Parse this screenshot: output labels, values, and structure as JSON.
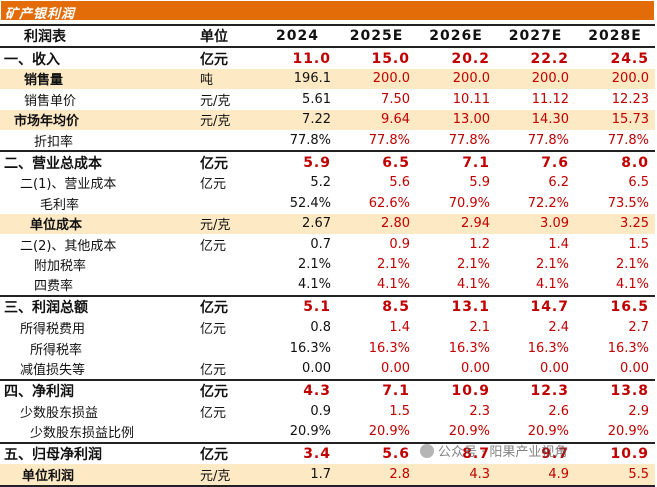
{
  "title": "矿产银利润",
  "header": {
    "label": "利润表",
    "unit": "单位",
    "years": [
      "2024",
      "2025E",
      "2026E",
      "2027E",
      "2028E"
    ]
  },
  "rows": [
    {
      "name": "一、收入",
      "unit": "亿元",
      "values": [
        "11.0",
        "15.0",
        "20.2",
        "22.2",
        "24.5"
      ],
      "style": "section"
    },
    {
      "name": "销售量",
      "unit": "吨",
      "values": [
        "196.1",
        "200.0",
        "200.0",
        "200.0",
        "200.0"
      ],
      "style": "hl-bold"
    },
    {
      "name": "销售单价",
      "unit": "元/克",
      "values": [
        "5.61",
        "7.50",
        "10.11",
        "11.12",
        "12.23"
      ],
      "style": "normal"
    },
    {
      "name": "市场年均价",
      "unit": "元/克",
      "values": [
        "7.22",
        "9.64",
        "13.00",
        "14.30",
        "15.73"
      ],
      "style": "hl-bold"
    },
    {
      "name": "折扣率",
      "unit": "",
      "values": [
        "77.8%",
        "77.8%",
        "77.8%",
        "77.8%",
        "77.8%"
      ],
      "style": "normal"
    },
    {
      "name": "二、营业总成本",
      "unit": "亿元",
      "values": [
        "5.9",
        "6.5",
        "7.1",
        "7.6",
        "8.0"
      ],
      "style": "section-rule"
    },
    {
      "name": "二(1)、营业成本",
      "unit": "亿元",
      "values": [
        "5.2",
        "5.6",
        "5.9",
        "6.2",
        "6.5"
      ],
      "style": "normal"
    },
    {
      "name": "毛利率",
      "unit": "",
      "values": [
        "52.4%",
        "62.6%",
        "70.9%",
        "72.2%",
        "73.5%"
      ],
      "style": "normal"
    },
    {
      "name": "单位成本",
      "unit": "元/克",
      "values": [
        "2.67",
        "2.80",
        "2.94",
        "3.09",
        "3.25"
      ],
      "style": "hl-bold"
    },
    {
      "name": "二(2)、其他成本",
      "unit": "亿元",
      "values": [
        "0.7",
        "0.9",
        "1.2",
        "1.4",
        "1.5"
      ],
      "style": "normal"
    },
    {
      "name": "附加税率",
      "unit": "",
      "values": [
        "2.1%",
        "2.1%",
        "2.1%",
        "2.1%",
        "2.1%"
      ],
      "style": "normal"
    },
    {
      "name": "四费率",
      "unit": "",
      "values": [
        "4.1%",
        "4.1%",
        "4.1%",
        "4.1%",
        "4.1%"
      ],
      "style": "normal"
    },
    {
      "name": "三、利润总额",
      "unit": "亿元",
      "values": [
        "5.1",
        "8.5",
        "13.1",
        "14.7",
        "16.5"
      ],
      "style": "section-rule"
    },
    {
      "name": "所得税费用",
      "unit": "亿元",
      "values": [
        "0.8",
        "1.4",
        "2.1",
        "2.4",
        "2.7"
      ],
      "style": "normal"
    },
    {
      "name": "所得税率",
      "unit": "",
      "values": [
        "16.3%",
        "16.3%",
        "16.3%",
        "16.3%",
        "16.3%"
      ],
      "style": "normal"
    },
    {
      "name": "减值损失等",
      "unit": "亿元",
      "values": [
        "0.00",
        "0.00",
        "0.00",
        "0.00",
        "0.00"
      ],
      "style": "normal"
    },
    {
      "name": "四、净利润",
      "unit": "亿元",
      "values": [
        "4.3",
        "7.1",
        "10.9",
        "12.3",
        "13.8"
      ],
      "style": "section-rule"
    },
    {
      "name": "少数股东损益",
      "unit": "亿元",
      "values": [
        "0.9",
        "1.5",
        "2.3",
        "2.6",
        "2.9"
      ],
      "style": "normal"
    },
    {
      "name": "少数股东损益比例",
      "unit": "",
      "values": [
        "20.9%",
        "20.9%",
        "20.9%",
        "20.9%",
        "20.9%"
      ],
      "style": "normal"
    },
    {
      "name": "五、归母净利润",
      "unit": "亿元",
      "values": [
        "3.4",
        "5.6",
        "8.7",
        "9.7",
        "10.9"
      ],
      "style": "section-rule"
    },
    {
      "name": "单位利润",
      "unit": "元/克",
      "values": [
        "1.7",
        "2.8",
        "4.3",
        "4.9",
        "5.5"
      ],
      "style": "hl-bold-last"
    }
  ],
  "watermark": "公众号 · 阳果产业视角",
  "colors": {
    "title_bg": "#e36c09",
    "highlight": "#fde9c4",
    "estimate": "#c00000"
  }
}
